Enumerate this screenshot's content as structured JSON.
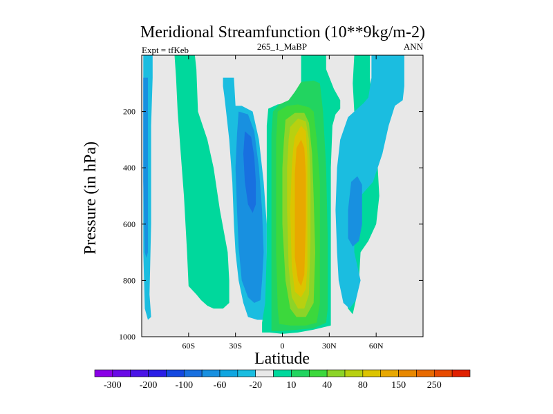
{
  "chart_data": {
    "type": "contour",
    "title": "Meridional Streamfunction (10**9kg/m-2)",
    "subtitle_left": "Expt = tfKeb",
    "subtitle_center": "265_1_MaBP",
    "subtitle_right": "ANN",
    "xlabel": "Latitude",
    "ylabel": "Pressure (in hPa)",
    "xlim": [
      -90,
      90
    ],
    "ylim": [
      1000,
      0
    ],
    "x_ticks": [
      {
        "value": -60,
        "label": "60S"
      },
      {
        "value": -30,
        "label": "30S"
      },
      {
        "value": 0,
        "label": "0"
      },
      {
        "value": 30,
        "label": "30N"
      },
      {
        "value": 60,
        "label": "60N"
      }
    ],
    "y_ticks": [
      {
        "value": 200,
        "label": "200"
      },
      {
        "value": 400,
        "label": "400"
      },
      {
        "value": 600,
        "label": "600"
      },
      {
        "value": 800,
        "label": "800"
      },
      {
        "value": 1000,
        "label": "1000"
      }
    ],
    "colorbar": {
      "colors": [
        "#8a00e6",
        "#6a0ae6",
        "#4a14e6",
        "#2a1ee6",
        "#1448e0",
        "#1870e0",
        "#1890e0",
        "#10a6e0",
        "#1bbde0",
        "#e8e8e8",
        "#00d89c",
        "#22d460",
        "#3cd83c",
        "#8cd428",
        "#b8d010",
        "#dcc400",
        "#e8a800",
        "#e88800",
        "#e86a00",
        "#e84a00",
        "#e02000"
      ],
      "labels": [
        {
          "after_box": 1,
          "text": "-300"
        },
        {
          "after_box": 3,
          "text": "-200"
        },
        {
          "after_box": 5,
          "text": "-100"
        },
        {
          "after_box": 7,
          "text": "-60"
        },
        {
          "after_box": 9,
          "text": "-20"
        },
        {
          "after_box": 11,
          "text": "10"
        },
        {
          "after_box": 13,
          "text": "40"
        },
        {
          "after_box": 15,
          "text": "80"
        },
        {
          "after_box": 17,
          "text": "150"
        },
        {
          "after_box": 19,
          "text": "250"
        }
      ]
    },
    "background_color": "#e8e8e8",
    "regions": [
      {
        "level": "-20",
        "color": "#1bbde0",
        "points": [
          [
            -88,
            0
          ],
          [
            -83,
            0
          ],
          [
            -83,
            80
          ],
          [
            -84,
            250
          ],
          [
            -84,
            600
          ],
          [
            -85,
            850
          ],
          [
            -84,
            930
          ],
          [
            -86,
            940
          ],
          [
            -88,
            900
          ],
          [
            -89,
            700
          ],
          [
            -89,
            0
          ]
        ]
      },
      {
        "level": "-60",
        "color": "#1890e0",
        "points": [
          [
            -88,
            80
          ],
          [
            -86,
            80
          ],
          [
            -86,
            400
          ],
          [
            -86,
            700
          ],
          [
            -87,
            720
          ],
          [
            -88,
            700
          ],
          [
            -89,
            450
          ],
          [
            -89,
            80
          ]
        ]
      },
      {
        "level": "10",
        "color": "#00d89c",
        "points": [
          [
            -69,
            0
          ],
          [
            -56,
            0
          ],
          [
            -55,
            50
          ],
          [
            -54,
            200
          ],
          [
            -48,
            300
          ],
          [
            -44,
            400
          ],
          [
            -40,
            550
          ],
          [
            -35,
            700
          ],
          [
            -34,
            800
          ],
          [
            -34,
            880
          ],
          [
            -38,
            900
          ],
          [
            -44,
            900
          ],
          [
            -48,
            890
          ],
          [
            -52,
            870
          ],
          [
            -55,
            850
          ],
          [
            -60,
            820
          ],
          [
            -61,
            700
          ],
          [
            -63,
            500
          ],
          [
            -65,
            350
          ],
          [
            -67,
            200
          ],
          [
            -68,
            80
          ]
        ]
      },
      {
        "level": "-20",
        "color": "#1bbde0",
        "points": [
          [
            -38,
            80
          ],
          [
            -31,
            80
          ],
          [
            -30,
            180
          ],
          [
            -26,
            180
          ],
          [
            -19,
            200
          ],
          [
            -15,
            300
          ],
          [
            -12,
            450
          ],
          [
            -10,
            600
          ],
          [
            -10,
            800
          ],
          [
            -11,
            900
          ],
          [
            -11,
            940
          ],
          [
            -16,
            940
          ],
          [
            -22,
            930
          ],
          [
            -25,
            880
          ],
          [
            -28,
            800
          ],
          [
            -30,
            700
          ],
          [
            -31,
            600
          ],
          [
            -32,
            450
          ],
          [
            -34,
            300
          ],
          [
            -36,
            200
          ],
          [
            -37,
            150
          ],
          [
            -38,
            110
          ]
        ]
      },
      {
        "level": "-60",
        "color": "#1890e0",
        "points": [
          [
            -28,
            200
          ],
          [
            -22,
            210
          ],
          [
            -18,
            270
          ],
          [
            -15,
            400
          ],
          [
            -13,
            550
          ],
          [
            -12,
            700
          ],
          [
            -13,
            800
          ],
          [
            -14,
            870
          ],
          [
            -18,
            880
          ],
          [
            -22,
            860
          ],
          [
            -26,
            800
          ],
          [
            -28,
            680
          ],
          [
            -29,
            550
          ],
          [
            -30,
            400
          ],
          [
            -29,
            280
          ]
        ]
      },
      {
        "level": "-100",
        "color": "#1870e0",
        "points": [
          [
            -24,
            270
          ],
          [
            -20,
            290
          ],
          [
            -18,
            360
          ],
          [
            -17,
            450
          ],
          [
            -17,
            530
          ],
          [
            -19,
            560
          ],
          [
            -22,
            530
          ],
          [
            -24,
            450
          ],
          [
            -25,
            350
          ]
        ]
      },
      {
        "level": "10",
        "color": "#00d89c",
        "points": [
          [
            12,
            0
          ],
          [
            28,
            0
          ],
          [
            28,
            50
          ],
          [
            33,
            120
          ],
          [
            37,
            160
          ],
          [
            37,
            190
          ],
          [
            34,
            210
          ],
          [
            32,
            250
          ],
          [
            31,
            400
          ],
          [
            31,
            700
          ],
          [
            31,
            960
          ],
          [
            20,
            975
          ],
          [
            10,
            985
          ],
          [
            0,
            990
          ],
          [
            -8,
            985
          ],
          [
            -13,
            985
          ],
          [
            -13,
            950
          ],
          [
            -11,
            880
          ],
          [
            -10,
            700
          ],
          [
            -10,
            400
          ],
          [
            -10,
            250
          ],
          [
            -9,
            190
          ],
          [
            -3,
            175
          ],
          [
            4,
            170
          ],
          [
            10,
            150
          ],
          [
            12,
            100
          ]
        ]
      },
      {
        "level": "40",
        "color": "#22d460",
        "points": [
          [
            12,
            95
          ],
          [
            20,
            90
          ],
          [
            24,
            100
          ],
          [
            26,
            200
          ],
          [
            28,
            400
          ],
          [
            29,
            650
          ],
          [
            29,
            900
          ],
          [
            28,
            950
          ],
          [
            20,
            970
          ],
          [
            10,
            975
          ],
          [
            0,
            980
          ],
          [
            -7,
            980
          ],
          [
            -7,
            900
          ],
          [
            -7,
            700
          ],
          [
            -7,
            450
          ],
          [
            -7,
            280
          ],
          [
            -6,
            200
          ],
          [
            -2,
            175
          ],
          [
            4,
            160
          ],
          [
            8,
            130
          ]
        ]
      },
      {
        "level": "40",
        "color": "#3cd83c",
        "points": [
          [
            -3,
            200
          ],
          [
            3,
            180
          ],
          [
            10,
            175
          ],
          [
            17,
            185
          ],
          [
            20,
            200
          ],
          [
            22,
            300
          ],
          [
            24,
            450
          ],
          [
            24,
            650
          ],
          [
            24,
            880
          ],
          [
            22,
            950
          ],
          [
            15,
            960
          ],
          [
            5,
            960
          ],
          [
            -2,
            955
          ],
          [
            -3,
            900
          ],
          [
            -4,
            700
          ],
          [
            -4,
            500
          ],
          [
            -4,
            300
          ]
        ]
      },
      {
        "level": "80",
        "color": "#8cd428",
        "points": [
          [
            2,
            230
          ],
          [
            8,
            205
          ],
          [
            14,
            205
          ],
          [
            17,
            240
          ],
          [
            19,
            350
          ],
          [
            20,
            500
          ],
          [
            21,
            700
          ],
          [
            20,
            880
          ],
          [
            15,
            930
          ],
          [
            9,
            930
          ],
          [
            5,
            900
          ],
          [
            2,
            800
          ],
          [
            0,
            600
          ],
          [
            0,
            400
          ],
          [
            1,
            300
          ]
        ]
      },
      {
        "level": "80",
        "color": "#b8d010",
        "points": [
          [
            5,
            255
          ],
          [
            10,
            225
          ],
          [
            15,
            235
          ],
          [
            17,
            300
          ],
          [
            18,
            450
          ],
          [
            18,
            650
          ],
          [
            17,
            850
          ],
          [
            14,
            900
          ],
          [
            10,
            900
          ],
          [
            6,
            860
          ],
          [
            4,
            750
          ],
          [
            3,
            550
          ],
          [
            3,
            400
          ],
          [
            4,
            300
          ]
        ]
      },
      {
        "level": "150",
        "color": "#dcc400",
        "points": [
          [
            8,
            290
          ],
          [
            12,
            250
          ],
          [
            15,
            270
          ],
          [
            16,
            360
          ],
          [
            16,
            550
          ],
          [
            16,
            750
          ],
          [
            15,
            830
          ],
          [
            12,
            860
          ],
          [
            8,
            840
          ],
          [
            6,
            750
          ],
          [
            5,
            550
          ],
          [
            6,
            400
          ],
          [
            7,
            330
          ]
        ]
      },
      {
        "level": "150",
        "color": "#e8a800",
        "points": [
          [
            9,
            330
          ],
          [
            12,
            300
          ],
          [
            14,
            330
          ],
          [
            15,
            420
          ],
          [
            15,
            600
          ],
          [
            14,
            780
          ],
          [
            12,
            820
          ],
          [
            10,
            800
          ],
          [
            8,
            720
          ],
          [
            8,
            550
          ],
          [
            8,
            420
          ]
        ]
      },
      {
        "level": "10",
        "color": "#00d89c",
        "points": [
          [
            46,
            0
          ],
          [
            56,
            0
          ],
          [
            56,
            80
          ],
          [
            58,
            200
          ],
          [
            60,
            300
          ],
          [
            62,
            500
          ],
          [
            60,
            600
          ],
          [
            55,
            660
          ],
          [
            50,
            700
          ],
          [
            49,
            800
          ],
          [
            47,
            870
          ],
          [
            45,
            920
          ],
          [
            42,
            900
          ],
          [
            40,
            860
          ],
          [
            40,
            780
          ],
          [
            42,
            700
          ],
          [
            46,
            600
          ],
          [
            48,
            500
          ],
          [
            49,
            400
          ],
          [
            48,
            300
          ],
          [
            46,
            200
          ],
          [
            45,
            100
          ]
        ]
      },
      {
        "level": "-20",
        "color": "#1bbde0",
        "points": [
          [
            57,
            0
          ],
          [
            78,
            0
          ],
          [
            78,
            110
          ],
          [
            77,
            160
          ],
          [
            72,
            180
          ],
          [
            68,
            250
          ],
          [
            64,
            350
          ],
          [
            58,
            450
          ],
          [
            50,
            500
          ],
          [
            46,
            600
          ],
          [
            46,
            700
          ],
          [
            50,
            800
          ],
          [
            47,
            870
          ],
          [
            43,
            900
          ],
          [
            39,
            880
          ],
          [
            36,
            800
          ],
          [
            35,
            700
          ],
          [
            34,
            550
          ],
          [
            35,
            400
          ],
          [
            37,
            300
          ],
          [
            42,
            220
          ],
          [
            52,
            170
          ],
          [
            55,
            150
          ],
          [
            57,
            80
          ]
        ]
      },
      {
        "level": "-60",
        "color": "#1890e0",
        "points": [
          [
            44,
            450
          ],
          [
            48,
            430
          ],
          [
            51,
            460
          ],
          [
            51,
            600
          ],
          [
            49,
            660
          ],
          [
            45,
            680
          ],
          [
            42,
            650
          ],
          [
            42,
            550
          ]
        ]
      }
    ]
  }
}
